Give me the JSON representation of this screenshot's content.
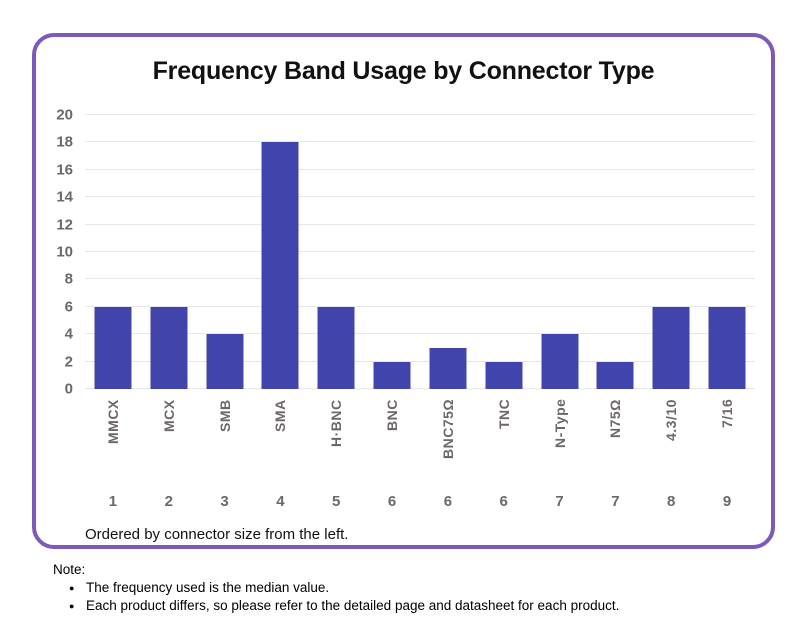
{
  "title": "Frequency Band Usage by Connector Type",
  "chart_data": {
    "type": "bar",
    "title": "Frequency Band Usage by Connector Type",
    "categories": [
      "MMCX",
      "MCX",
      "SMB",
      "SMA",
      "H·BNC",
      "BNC",
      "BNC75Ω",
      "TNC",
      "N-Type",
      "N75Ω",
      "4.3/10",
      "7/16"
    ],
    "size_ranks": [
      "1",
      "2",
      "3",
      "4",
      "5",
      "6",
      "6",
      "6",
      "7",
      "7",
      "8",
      "9"
    ],
    "values": [
      6,
      6,
      4,
      18,
      6,
      2,
      3,
      2,
      4,
      2,
      6,
      6
    ],
    "xlabel": "",
    "ylabel": "",
    "ylim": [
      0,
      20
    ],
    "ytick_step": 2,
    "grid": true,
    "legend": "none",
    "bar_color": "#4145ab",
    "caption": "Ordered by connector size from the left."
  },
  "note": {
    "label": "Note:",
    "items": [
      "The frequency used is the median value.",
      "Each product differs, so please refer to the detailed page and datasheet for each product."
    ]
  },
  "colors": {
    "frame_border": "#7b59bd",
    "bar": "#4145ab",
    "gridline": "#e6e6ec",
    "axis_text": "#6e6767",
    "title_text": "#111111"
  }
}
